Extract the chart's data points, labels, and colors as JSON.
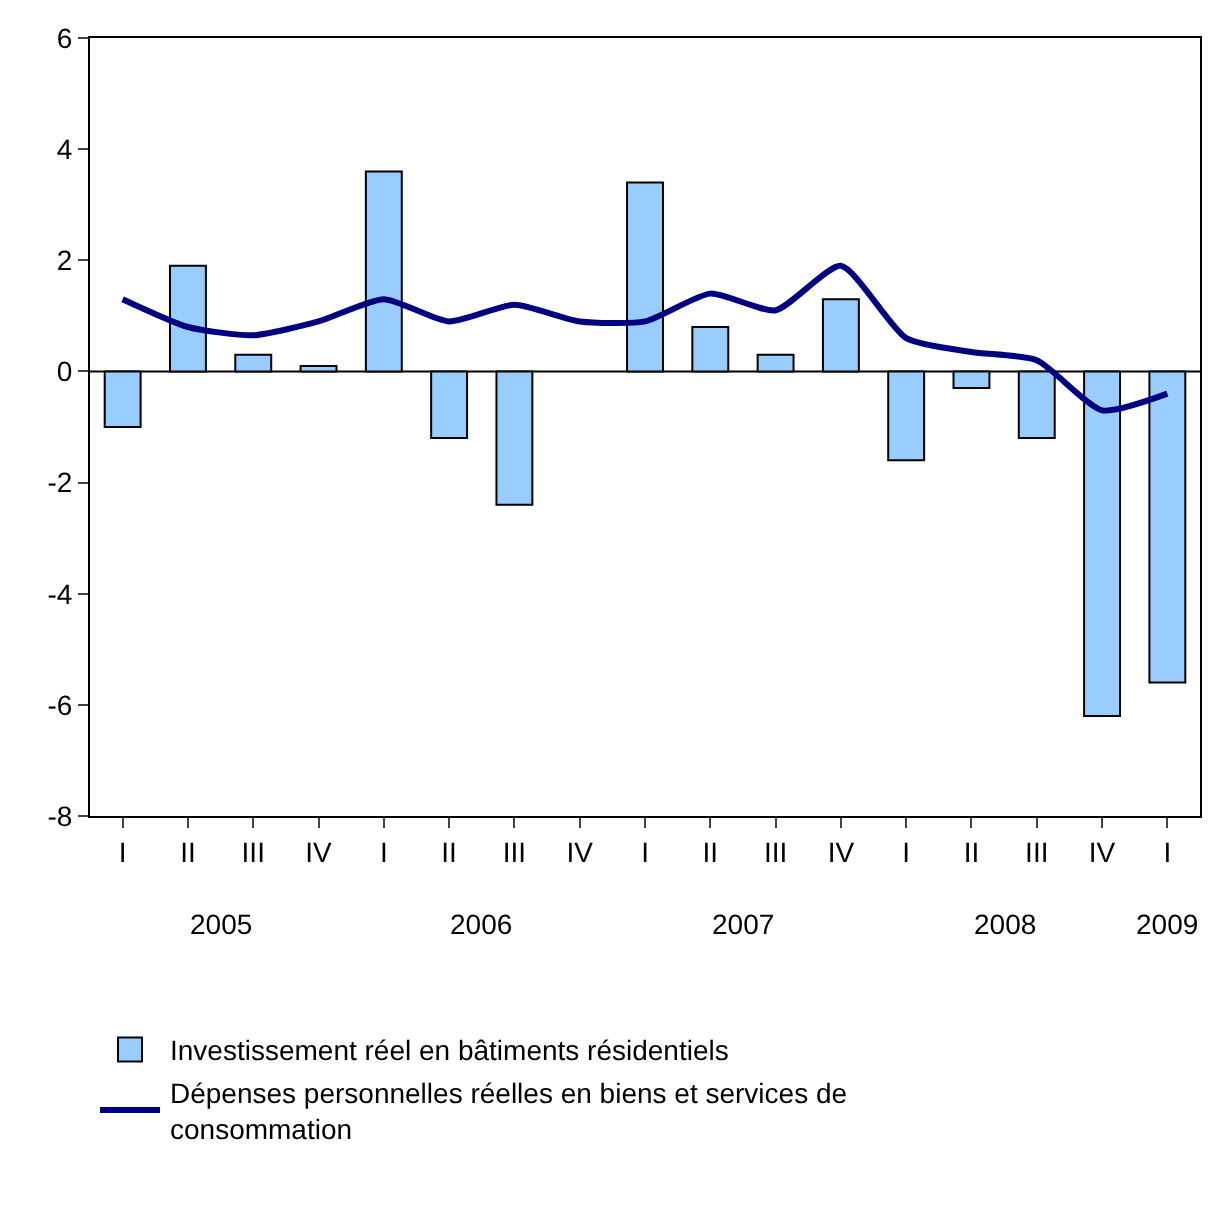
{
  "chart_data": {
    "type": "bar",
    "categories": [
      "I",
      "II",
      "III",
      "IV",
      "I",
      "II",
      "III",
      "IV",
      "I",
      "II",
      "III",
      "IV",
      "I",
      "II",
      "III",
      "IV",
      "I"
    ],
    "series": [
      {
        "name": "Investissement réel en bâtiments résidentiels",
        "color": "#99ccff",
        "values": [
          -1.0,
          1.9,
          0.3,
          0.1,
          3.6,
          -1.2,
          -2.4,
          0,
          3.4,
          0.8,
          0.3,
          1.3,
          -1.6,
          -0.3,
          -1.2,
          -6.2,
          -5.6
        ]
      },
      {
        "name": "Dépenses personnelles réelles en biens et services de consommation",
        "type": "line",
        "color": "#000080",
        "values": [
          1.3,
          0.8,
          0.65,
          0.9,
          1.3,
          0.9,
          1.2,
          0.9,
          0.9,
          1.4,
          1.1,
          1.9,
          0.6,
          0.35,
          0.2,
          -0.7,
          -0.4
        ]
      }
    ],
    "annotations": [
      "2005",
      "2006",
      "2007",
      "2008",
      "2009"
    ],
    "ylim": [
      -8,
      6
    ],
    "yticks": [
      -8,
      -6,
      -4,
      -2,
      0,
      2,
      4,
      6
    ],
    "ref_lines": [
      {
        "axis": "y",
        "value": 0
      }
    ],
    "grid": false,
    "legend": "bottom",
    "line_style": "solid",
    "marker": "none"
  }
}
